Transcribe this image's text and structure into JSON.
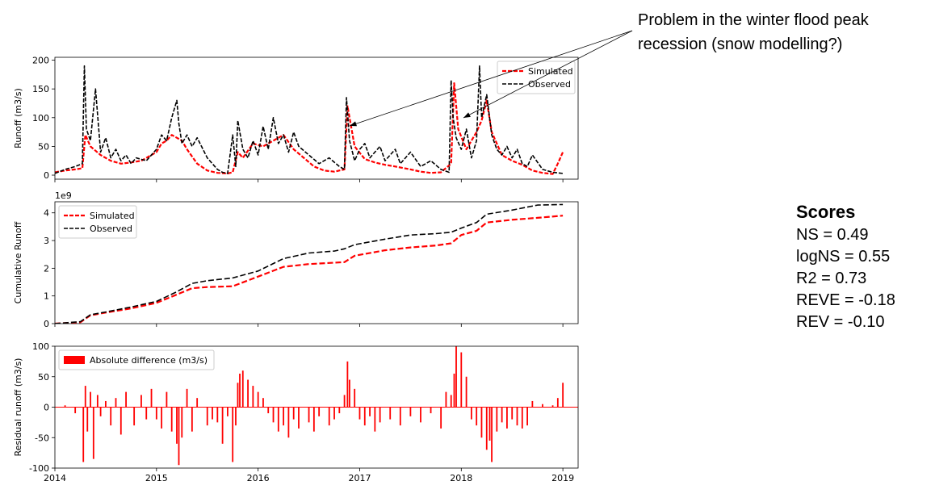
{
  "annotation": {
    "line1": "Problem in the winter flood peak",
    "line2": "recession (snow modelling?)"
  },
  "scores": {
    "title": "Scores",
    "items": [
      "NS = 0.49",
      "logNS = 0.55",
      "R2 = 0.73",
      "REVE = -0.18",
      "REV = -0.10"
    ]
  },
  "colors": {
    "simulated": "#ff0000",
    "observed": "#000000",
    "residual": "#ff0000"
  },
  "chart_data": [
    {
      "type": "line",
      "ylabel": "Runoff (m3/s)",
      "xlim": [
        2014.0,
        2019.15
      ],
      "ylim": [
        -7,
        205
      ],
      "yticks": [
        0,
        50,
        100,
        150,
        200
      ],
      "legend": "top-right",
      "series": [
        {
          "name": "Simulated",
          "style": "dashed",
          "color": "#ff0000",
          "x": [
            2014.0,
            2014.1,
            2014.2,
            2014.27,
            2014.3,
            2014.35,
            2014.45,
            2014.55,
            2014.65,
            2014.75,
            2014.85,
            2014.95,
            2015.0,
            2015.05,
            2015.1,
            2015.15,
            2015.2,
            2015.25,
            2015.3,
            2015.4,
            2015.5,
            2015.6,
            2015.7,
            2015.75,
            2015.8,
            2015.85,
            2015.95,
            2016.05,
            2016.15,
            2016.25,
            2016.35,
            2016.45,
            2016.55,
            2016.65,
            2016.75,
            2016.85,
            2016.88,
            2016.95,
            2017.05,
            2017.15,
            2017.25,
            2017.35,
            2017.5,
            2017.6,
            2017.7,
            2017.8,
            2017.9,
            2017.93,
            2017.97,
            2018.05,
            2018.15,
            2018.2,
            2018.25,
            2018.3,
            2018.4,
            2018.5,
            2018.6,
            2018.7,
            2018.8,
            2018.9,
            2018.95,
            2019.0
          ],
          "y": [
            5,
            8,
            10,
            12,
            70,
            50,
            35,
            25,
            20,
            22,
            25,
            35,
            40,
            55,
            60,
            70,
            65,
            60,
            45,
            20,
            8,
            4,
            3,
            5,
            40,
            30,
            55,
            50,
            60,
            70,
            45,
            30,
            15,
            8,
            6,
            10,
            120,
            50,
            28,
            22,
            18,
            15,
            10,
            6,
            4,
            5,
            20,
            160,
            80,
            45,
            75,
            95,
            130,
            75,
            35,
            25,
            18,
            8,
            4,
            2,
            20,
            40
          ]
        },
        {
          "name": "Observed",
          "style": "dashed",
          "color": "#000000",
          "x": [
            2014.0,
            2014.1,
            2014.2,
            2014.27,
            2014.29,
            2014.31,
            2014.35,
            2014.4,
            2014.45,
            2014.5,
            2014.55,
            2014.6,
            2014.65,
            2014.7,
            2014.75,
            2014.8,
            2014.9,
            2015.0,
            2015.05,
            2015.1,
            2015.15,
            2015.2,
            2015.22,
            2015.25,
            2015.3,
            2015.35,
            2015.4,
            2015.5,
            2015.6,
            2015.65,
            2015.7,
            2015.75,
            2015.78,
            2015.8,
            2015.85,
            2015.9,
            2015.95,
            2016.0,
            2016.05,
            2016.1,
            2016.15,
            2016.2,
            2016.25,
            2016.3,
            2016.35,
            2016.4,
            2016.5,
            2016.6,
            2016.7,
            2016.8,
            2016.85,
            2016.87,
            2016.9,
            2016.95,
            2017.0,
            2017.05,
            2017.1,
            2017.15,
            2017.2,
            2017.25,
            2017.3,
            2017.35,
            2017.4,
            2017.5,
            2017.6,
            2017.7,
            2017.8,
            2017.88,
            2017.9,
            2017.92,
            2017.95,
            2018.0,
            2018.05,
            2018.1,
            2018.15,
            2018.18,
            2018.2,
            2018.25,
            2018.3,
            2018.35,
            2018.4,
            2018.45,
            2018.5,
            2018.55,
            2018.6,
            2018.65,
            2018.7,
            2018.8,
            2018.9,
            2019.0
          ],
          "y": [
            3,
            10,
            15,
            20,
            190,
            80,
            60,
            150,
            40,
            65,
            30,
            45,
            25,
            35,
            20,
            30,
            25,
            45,
            70,
            60,
            100,
            130,
            90,
            55,
            70,
            50,
            65,
            30,
            10,
            5,
            3,
            70,
            15,
            95,
            45,
            30,
            60,
            35,
            85,
            45,
            100,
            55,
            70,
            40,
            75,
            50,
            35,
            20,
            30,
            15,
            10,
            135,
            60,
            25,
            45,
            55,
            30,
            40,
            50,
            25,
            35,
            45,
            20,
            40,
            15,
            25,
            10,
            5,
            165,
            100,
            65,
            45,
            80,
            30,
            60,
            190,
            100,
            140,
            70,
            45,
            35,
            50,
            30,
            45,
            20,
            15,
            35,
            10,
            5,
            3
          ]
        }
      ]
    },
    {
      "type": "line",
      "ylabel": "Cumulative Runoff",
      "scale_label": "1e9",
      "xlim": [
        2014.0,
        2019.15
      ],
      "ylim": [
        0,
        4.4
      ],
      "yticks": [
        0,
        1,
        2,
        3,
        4
      ],
      "legend": "top-left",
      "series": [
        {
          "name": "Simulated",
          "style": "dashed",
          "color": "#ff0000",
          "x": [
            2014.0,
            2014.25,
            2014.35,
            2014.5,
            2014.75,
            2015.0,
            2015.2,
            2015.35,
            2015.5,
            2015.75,
            2016.0,
            2016.25,
            2016.5,
            2016.75,
            2016.85,
            2016.95,
            2017.25,
            2017.5,
            2017.75,
            2017.9,
            2018.0,
            2018.15,
            2018.25,
            2018.5,
            2018.75,
            2019.0
          ],
          "y": [
            0,
            0.05,
            0.3,
            0.4,
            0.55,
            0.75,
            1.05,
            1.28,
            1.32,
            1.35,
            1.7,
            2.05,
            2.15,
            2.2,
            2.22,
            2.45,
            2.65,
            2.75,
            2.82,
            2.9,
            3.2,
            3.35,
            3.65,
            3.75,
            3.82,
            3.9
          ]
        },
        {
          "name": "Observed",
          "style": "dashed",
          "color": "#000000",
          "x": [
            2014.0,
            2014.25,
            2014.35,
            2014.5,
            2014.75,
            2015.0,
            2015.2,
            2015.35,
            2015.5,
            2015.75,
            2016.0,
            2016.25,
            2016.5,
            2016.75,
            2016.85,
            2016.95,
            2017.25,
            2017.5,
            2017.75,
            2017.9,
            2018.0,
            2018.15,
            2018.25,
            2018.5,
            2018.75,
            2019.0
          ],
          "y": [
            0,
            0.07,
            0.32,
            0.42,
            0.6,
            0.8,
            1.15,
            1.45,
            1.55,
            1.65,
            1.9,
            2.35,
            2.55,
            2.62,
            2.7,
            2.85,
            3.05,
            3.2,
            3.25,
            3.3,
            3.45,
            3.65,
            3.95,
            4.1,
            4.28,
            4.3
          ]
        }
      ]
    },
    {
      "type": "bar",
      "ylabel": "Residual runoff (m3/s)",
      "xlim": [
        2014.0,
        2019.15
      ],
      "ylim": [
        -100,
        100
      ],
      "yticks": [
        -100,
        -50,
        0,
        50,
        100
      ],
      "xticks": [
        "2014",
        "2015",
        "2016",
        "2017",
        "2018",
        "2019"
      ],
      "legend": "top-left",
      "series": [
        {
          "name": "Absolute difference (m3/s)",
          "color": "#ff0000",
          "x": [
            2014.1,
            2014.2,
            2014.28,
            2014.3,
            2014.32,
            2014.35,
            2014.38,
            2014.42,
            2014.45,
            2014.5,
            2014.55,
            2014.6,
            2014.65,
            2014.7,
            2014.78,
            2014.85,
            2014.9,
            2014.95,
            2015.0,
            2015.05,
            2015.1,
            2015.15,
            2015.2,
            2015.22,
            2015.25,
            2015.3,
            2015.35,
            2015.4,
            2015.5,
            2015.55,
            2015.6,
            2015.65,
            2015.7,
            2015.75,
            2015.78,
            2015.8,
            2015.82,
            2015.85,
            2015.9,
            2015.95,
            2016.0,
            2016.05,
            2016.1,
            2016.15,
            2016.2,
            2016.25,
            2016.3,
            2016.35,
            2016.4,
            2016.5,
            2016.55,
            2016.6,
            2016.7,
            2016.75,
            2016.8,
            2016.85,
            2016.88,
            2016.9,
            2016.95,
            2017.0,
            2017.05,
            2017.1,
            2017.15,
            2017.2,
            2017.3,
            2017.4,
            2017.5,
            2017.6,
            2017.7,
            2017.8,
            2017.85,
            2017.9,
            2017.93,
            2017.95,
            2018.0,
            2018.05,
            2018.1,
            2018.15,
            2018.2,
            2018.25,
            2018.28,
            2018.3,
            2018.35,
            2018.4,
            2018.45,
            2018.5,
            2018.55,
            2018.6,
            2018.65,
            2018.7,
            2018.8,
            2018.9,
            2018.95,
            2019.0
          ],
          "y": [
            3,
            -10,
            -90,
            35,
            -40,
            25,
            -85,
            20,
            -15,
            10,
            -30,
            15,
            -45,
            25,
            -30,
            20,
            -20,
            30,
            -20,
            -35,
            25,
            -40,
            -60,
            -95,
            -50,
            30,
            -40,
            15,
            -30,
            -20,
            -25,
            -60,
            -15,
            -90,
            -30,
            40,
            55,
            60,
            45,
            35,
            25,
            15,
            -10,
            -25,
            -40,
            -30,
            -50,
            -20,
            -35,
            -25,
            -40,
            -15,
            -30,
            -20,
            -10,
            20,
            75,
            45,
            30,
            -20,
            -30,
            -15,
            -40,
            -25,
            -20,
            -30,
            -15,
            -25,
            -10,
            -35,
            25,
            20,
            55,
            100,
            90,
            50,
            -20,
            -30,
            -50,
            -70,
            -55,
            -90,
            -40,
            -25,
            -35,
            -20,
            -30,
            -35,
            -30,
            10,
            5,
            3,
            15,
            40
          ]
        }
      ]
    }
  ]
}
